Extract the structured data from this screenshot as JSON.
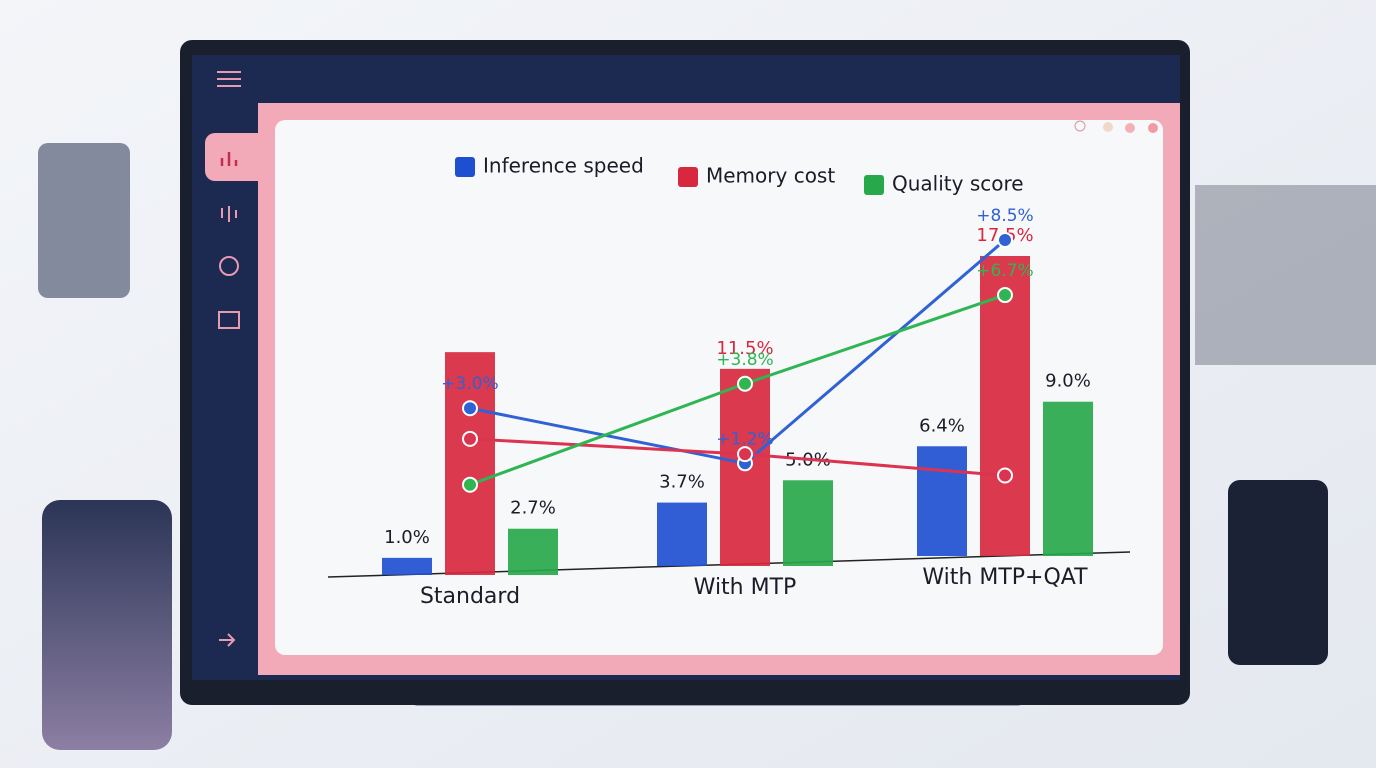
{
  "chart_data": {
    "type": "bar",
    "categories": [
      "Standard",
      "With MTP",
      "With MTP+QAT"
    ],
    "series": [
      {
        "name": "Inference speed",
        "color": "#1f4fd1",
        "values": [
          1.0,
          3.7,
          6.4
        ],
        "value_labels": [
          "1.0%",
          "3.7%",
          "6.4%"
        ]
      },
      {
        "name": "Memory cost",
        "color": "#d8283f",
        "values": [
          13,
          11.5,
          17.5
        ],
        "value_labels": [
          null,
          "11.5%",
          "17.5%"
        ]
      },
      {
        "name": "Quality score",
        "color": "#27a84a",
        "values": [
          2.7,
          5.0,
          9.0
        ],
        "value_labels": [
          "2.7%",
          "5.0%",
          "9.0%"
        ]
      }
    ],
    "trend_lines": [
      {
        "color": "#2f62d4",
        "values": [
          3.0,
          1.2,
          8.5
        ],
        "value_labels": [
          "+3.0%",
          "+1.2%",
          "+8.5%"
        ]
      },
      {
        "color": "#dc3450",
        "values": [
          2.0,
          1.5,
          0.8
        ],
        "value_labels": [
          null,
          null,
          null
        ]
      },
      {
        "color": "#2fb552",
        "values": [
          0.5,
          3.8,
          6.7
        ],
        "value_labels": [
          null,
          "+3.8%",
          "+6.7%"
        ]
      }
    ]
  }
}
